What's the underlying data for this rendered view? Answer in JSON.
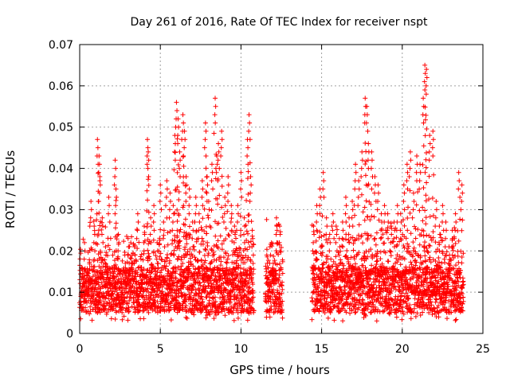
{
  "chart_data": {
    "type": "scatter",
    "title": "Day 261 of 2016, Rate Of TEC Index for receiver nspt",
    "xlabel": "GPS time / hours",
    "ylabel": "ROTI / TECUs",
    "xlim": [
      0,
      25
    ],
    "ylim": [
      0,
      0.07
    ],
    "xticks": [
      0,
      5,
      10,
      15,
      20,
      25
    ],
    "xtick_labels": [
      "0",
      "5",
      "10",
      "15",
      "20",
      "25"
    ],
    "yticks": [
      0,
      0.01,
      0.02,
      0.03,
      0.04,
      0.05,
      0.06,
      0.07
    ],
    "ytick_labels": [
      "0",
      "0.01",
      "0.02",
      "0.03",
      "0.04",
      "0.05",
      "0.06",
      "0.07"
    ],
    "grid": true,
    "marker": "+",
    "color": "#ff0000",
    "data_gaps_hours": [
      [
        10.8,
        11.5
      ],
      [
        12.6,
        14.4
      ],
      [
        23.8,
        25
      ]
    ],
    "series": [
      {
        "name": "ROTI",
        "x": [
          0.1,
          0.3,
          0.5,
          0.7,
          0.9,
          1.0,
          1.1,
          1.2,
          1.25,
          1.4,
          1.6,
          1.8,
          2.0,
          2.2,
          2.25,
          2.4,
          2.6,
          2.8,
          3.0,
          3.2,
          3.4,
          3.6,
          3.8,
          4.0,
          4.2,
          4.25,
          4.4,
          4.6,
          4.8,
          5.0,
          5.2,
          5.4,
          5.6,
          5.8,
          5.9,
          6.0,
          6.1,
          6.2,
          6.4,
          6.5,
          6.6,
          6.8,
          7.0,
          7.2,
          7.4,
          7.6,
          7.8,
          7.9,
          8.0,
          8.2,
          8.4,
          8.5,
          8.6,
          8.8,
          9.0,
          9.2,
          9.4,
          9.6,
          9.8,
          10.0,
          10.2,
          10.4,
          10.5,
          10.6,
          10.7,
          11.6,
          11.8,
          12.0,
          12.2,
          12.4,
          14.5,
          14.7,
          14.9,
          15.1,
          15.3,
          15.5,
          15.7,
          15.9,
          16.1,
          16.3,
          16.5,
          16.7,
          16.9,
          17.1,
          17.3,
          17.5,
          17.7,
          17.8,
          17.9,
          18.1,
          18.3,
          18.5,
          18.7,
          18.9,
          19.1,
          19.3,
          19.5,
          19.7,
          19.9,
          20.1,
          20.3,
          20.5,
          20.7,
          20.9,
          21.1,
          21.3,
          21.4,
          21.5,
          21.7,
          21.9,
          22.1,
          22.3,
          22.5,
          22.7,
          22.9,
          23.1,
          23.3,
          23.5,
          23.7
        ],
        "y": [
          0.011,
          0.022,
          0.013,
          0.032,
          0.026,
          0.015,
          0.047,
          0.043,
          0.038,
          0.028,
          0.021,
          0.033,
          0.016,
          0.042,
          0.035,
          0.024,
          0.012,
          0.019,
          0.023,
          0.017,
          0.021,
          0.029,
          0.018,
          0.026,
          0.047,
          0.044,
          0.028,
          0.031,
          0.022,
          0.036,
          0.027,
          0.037,
          0.034,
          0.031,
          0.048,
          0.056,
          0.052,
          0.044,
          0.053,
          0.049,
          0.038,
          0.035,
          0.027,
          0.033,
          0.029,
          0.037,
          0.051,
          0.038,
          0.032,
          0.041,
          0.057,
          0.043,
          0.046,
          0.049,
          0.033,
          0.038,
          0.031,
          0.026,
          0.031,
          0.039,
          0.028,
          0.047,
          0.053,
          0.038,
          0.025,
          0.019,
          0.021,
          0.017,
          0.028,
          0.026,
          0.026,
          0.031,
          0.035,
          0.039,
          0.028,
          0.024,
          0.029,
          0.026,
          0.023,
          0.027,
          0.033,
          0.028,
          0.032,
          0.041,
          0.037,
          0.044,
          0.057,
          0.055,
          0.046,
          0.044,
          0.038,
          0.036,
          0.029,
          0.031,
          0.029,
          0.026,
          0.027,
          0.031,
          0.029,
          0.036,
          0.041,
          0.044,
          0.034,
          0.043,
          0.041,
          0.057,
          0.065,
          0.064,
          0.048,
          0.049,
          0.032,
          0.026,
          0.031,
          0.027,
          0.021,
          0.025,
          0.029,
          0.039,
          0.036
        ]
      }
    ],
    "band_fraction": 0.78
  }
}
